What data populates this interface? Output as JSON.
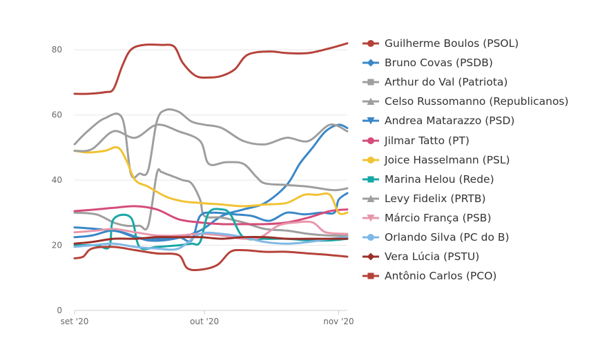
{
  "chart_data": {
    "type": "line",
    "x": [
      "set '20",
      "out '20",
      "nov '20"
    ],
    "xlim": [
      "2020-09-01",
      "2020-11-03"
    ],
    "ylim": [
      0,
      90
    ],
    "yticks": [
      0,
      20,
      40,
      60,
      80
    ],
    "xticks": [
      "set '20",
      "out '20",
      "nov '20"
    ],
    "grid": true,
    "legend_position": "right",
    "series": [
      {
        "name": "Guilherme Boulos (PSOL)",
        "color": "#b5423a",
        "marker": "circle",
        "x": [
          "2020-09-01",
          "2020-09-04",
          "2020-09-08",
          "2020-09-10",
          "2020-09-12",
          "2020-09-14",
          "2020-09-17",
          "2020-09-21",
          "2020-09-24",
          "2020-09-26",
          "2020-09-29",
          "2020-10-02",
          "2020-10-05",
          "2020-10-08",
          "2020-10-11",
          "2020-10-16",
          "2020-10-20",
          "2020-10-25",
          "2020-10-30",
          "2020-11-03"
        ],
        "y": [
          66.5,
          66.5,
          67,
          68,
          75,
          80,
          81.5,
          81.5,
          81,
          76,
          72,
          71.5,
          72,
          74,
          78.5,
          79.5,
          79,
          79,
          80.5,
          82
        ]
      },
      {
        "name": "Bruno Covas (PSDB)",
        "color": "#3a87c8",
        "marker": "diamond",
        "x": [
          "2020-09-01",
          "2020-09-06",
          "2020-09-12",
          "2020-09-18",
          "2020-09-24",
          "2020-09-30",
          "2020-10-05",
          "2020-10-10",
          "2020-10-15",
          "2020-10-20",
          "2020-10-23",
          "2020-10-26",
          "2020-10-29",
          "2020-11-01",
          "2020-11-03"
        ],
        "y": [
          25.5,
          25,
          24,
          21.5,
          22,
          24.5,
          29,
          31,
          33,
          38.5,
          45,
          50,
          55,
          57,
          56
        ]
      },
      {
        "name": "Arthur do Val (Patriota)",
        "color": "#9e9e9e",
        "marker": "square",
        "x": [
          "2020-09-01",
          "2020-09-06",
          "2020-09-10",
          "2020-09-13",
          "2020-09-16",
          "2020-09-18",
          "2020-09-20",
          "2020-09-21",
          "2020-09-22",
          "2020-09-24",
          "2020-09-26",
          "2020-09-28",
          "2020-09-30",
          "2020-10-01",
          "2020-10-05",
          "2020-10-10",
          "2020-10-15",
          "2020-10-20",
          "2020-10-25",
          "2020-10-30",
          "2020-11-03"
        ],
        "y": [
          30,
          29.5,
          27,
          26,
          26,
          26,
          42,
          42.5,
          42,
          41,
          40,
          39,
          34,
          29,
          28.5,
          27,
          25,
          24.5,
          23.5,
          23,
          23
        ]
      },
      {
        "name": "Celso Russomanno (Republicanos)",
        "color": "#9e9e9e",
        "marker": "triangle",
        "x": [
          "2020-09-01",
          "2020-09-04",
          "2020-09-08",
          "2020-09-12",
          "2020-09-14",
          "2020-09-16",
          "2020-09-18",
          "2020-09-20",
          "2020-09-22",
          "2020-09-25",
          "2020-09-28",
          "2020-10-01",
          "2020-10-05",
          "2020-10-10",
          "2020-10-15",
          "2020-10-20",
          "2020-10-25",
          "2020-10-30",
          "2020-11-03"
        ],
        "y": [
          51,
          55,
          59,
          59,
          42,
          42,
          43,
          58,
          61.5,
          61,
          58,
          57,
          56,
          52,
          51,
          53,
          52,
          57,
          55
        ]
      },
      {
        "name": "Andrea Matarazzo (PSD)",
        "color": "#3a87c8",
        "marker": "triangle-down",
        "x": [
          "2020-09-01",
          "2020-09-05",
          "2020-09-10",
          "2020-09-15",
          "2020-09-20",
          "2020-09-25",
          "2020-09-28",
          "2020-09-30",
          "2020-10-03",
          "2020-10-08",
          "2020-10-12",
          "2020-10-16",
          "2020-10-20",
          "2020-10-24",
          "2020-10-28",
          "2020-10-31",
          "2020-11-01",
          "2020-11-03"
        ],
        "y": [
          22.5,
          23,
          24.5,
          22.5,
          22,
          22.5,
          21.5,
          29,
          30,
          29.5,
          29,
          27.5,
          30,
          29.5,
          30,
          30,
          34,
          36
        ]
      },
      {
        "name": "Jilmar Tatto (PT)",
        "color": "#d44c7a",
        "marker": "circle",
        "x": [
          "2020-09-01",
          "2020-09-06",
          "2020-09-10",
          "2020-09-15",
          "2020-09-20",
          "2020-09-25",
          "2020-09-30",
          "2020-10-05",
          "2020-10-10",
          "2020-10-15",
          "2020-10-20",
          "2020-10-25",
          "2020-10-30",
          "2020-11-03"
        ],
        "y": [
          30.5,
          31,
          31.5,
          32,
          31,
          28,
          27,
          26.5,
          26.5,
          26.5,
          27,
          28.5,
          30.5,
          31
        ]
      },
      {
        "name": "Joice Hasselmann (PSL)",
        "color": "#f1c232",
        "marker": "circle",
        "x": [
          "2020-09-01",
          "2020-09-04",
          "2020-09-08",
          "2020-09-11",
          "2020-09-13",
          "2020-09-15",
          "2020-09-18",
          "2020-09-22",
          "2020-09-26",
          "2020-09-30",
          "2020-10-05",
          "2020-10-10",
          "2020-10-15",
          "2020-10-20",
          "2020-10-24",
          "2020-10-27",
          "2020-10-30",
          "2020-11-01",
          "2020-11-03"
        ],
        "y": [
          49,
          48.5,
          49,
          50,
          46,
          40,
          38,
          35,
          33.5,
          33,
          32.5,
          32,
          32.5,
          33,
          35.5,
          35.5,
          35.5,
          30,
          30
        ]
      },
      {
        "name": "Marina Helou (Rede)",
        "color": "#17a7a7",
        "marker": "square",
        "x": [
          "2020-09-01",
          "2020-09-06",
          "2020-09-09",
          "2020-09-10",
          "2020-09-14",
          "2020-09-16",
          "2020-09-20",
          "2020-09-25",
          "2020-09-28",
          "2020-09-30",
          "2020-10-02",
          "2020-10-05",
          "2020-10-07",
          "2020-10-10",
          "2020-10-15",
          "2020-10-20",
          "2020-10-25",
          "2020-10-30",
          "2020-11-03"
        ],
        "y": [
          20,
          20,
          19.5,
          28,
          28.5,
          19.5,
          19.5,
          20,
          20.5,
          21,
          30,
          31,
          29.5,
          22.5,
          22,
          22,
          21.5,
          21.5,
          22
        ]
      },
      {
        "name": "Levy Fidelix (PRTB)",
        "color": "#9e9e9e",
        "marker": "triangle",
        "x": [
          "2020-09-01",
          "2020-09-05",
          "2020-09-10",
          "2020-09-15",
          "2020-09-20",
          "2020-09-25",
          "2020-09-30",
          "2020-10-02",
          "2020-10-06",
          "2020-10-10",
          "2020-10-13",
          "2020-10-15",
          "2020-10-20",
          "2020-10-25",
          "2020-10-30",
          "2020-11-01",
          "2020-11-03"
        ],
        "y": [
          49,
          49.5,
          55,
          53,
          57,
          55,
          52,
          45,
          45.5,
          45,
          41,
          39,
          38.5,
          38,
          37,
          37,
          37.5
        ]
      },
      {
        "name": "Márcio França (PSB)",
        "color": "#e797ab",
        "marker": "triangle-down",
        "x": [
          "2020-09-01",
          "2020-09-06",
          "2020-09-10",
          "2020-09-15",
          "2020-09-20",
          "2020-09-25",
          "2020-09-30",
          "2020-10-05",
          "2020-10-10",
          "2020-10-14",
          "2020-10-18",
          "2020-10-22",
          "2020-10-26",
          "2020-10-29",
          "2020-11-03"
        ],
        "y": [
          24,
          24.5,
          25,
          24,
          23,
          23,
          23.5,
          23,
          22,
          22.5,
          26,
          27,
          27,
          24,
          23.5
        ]
      },
      {
        "name": "Orlando Silva (PC do B)",
        "color": "#7fb8e6",
        "marker": "circle",
        "x": [
          "2020-09-01",
          "2020-09-05",
          "2020-09-10",
          "2020-09-15",
          "2020-09-20",
          "2020-09-25",
          "2020-09-30",
          "2020-10-05",
          "2020-10-10",
          "2020-10-15",
          "2020-10-20",
          "2020-10-25",
          "2020-10-30",
          "2020-11-03"
        ],
        "y": [
          19.5,
          20,
          20.5,
          19.5,
          19,
          19,
          23.5,
          23.5,
          22.5,
          21,
          20.5,
          21,
          22,
          22.5
        ]
      },
      {
        "name": "Vera Lúcia (PSTU)",
        "color": "#9b2f28",
        "marker": "diamond",
        "x": [
          "2020-09-01",
          "2020-09-05",
          "2020-09-10",
          "2020-09-15",
          "2020-09-20",
          "2020-09-25",
          "2020-09-30",
          "2020-10-05",
          "2020-10-10",
          "2020-10-15",
          "2020-10-20",
          "2020-10-25",
          "2020-10-30",
          "2020-11-03"
        ],
        "y": [
          20.5,
          21,
          22,
          22,
          22.5,
          22.5,
          22.5,
          22,
          22.5,
          22.5,
          22,
          22,
          22,
          22
        ]
      },
      {
        "name": "Antônio Carlos (PCO)",
        "color": "#b5423a",
        "marker": "square",
        "x": [
          "2020-09-01",
          "2020-09-03",
          "2020-09-05",
          "2020-09-10",
          "2020-09-15",
          "2020-09-20",
          "2020-09-25",
          "2020-09-27",
          "2020-09-30",
          "2020-10-04",
          "2020-10-07",
          "2020-10-10",
          "2020-10-15",
          "2020-10-20",
          "2020-10-25",
          "2020-10-30",
          "2020-11-03"
        ],
        "y": [
          16,
          16.5,
          19,
          19.5,
          18.5,
          17.5,
          17,
          13,
          12.5,
          14,
          18,
          18.5,
          18,
          18,
          17.5,
          17,
          16.5
        ]
      }
    ]
  }
}
